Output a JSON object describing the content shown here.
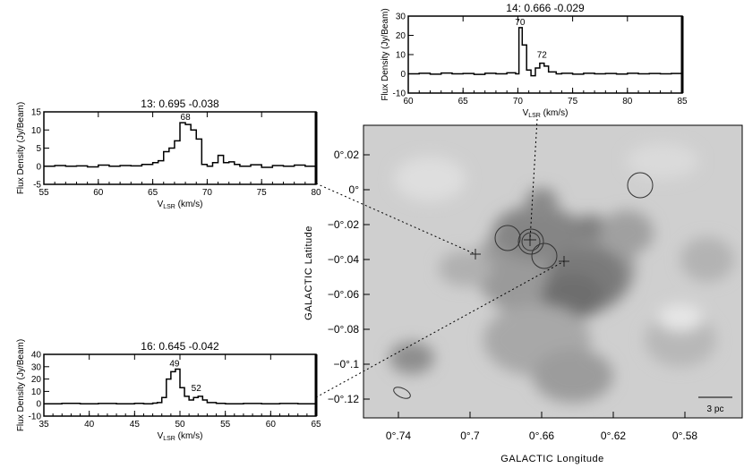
{
  "colors": {
    "line": "#000000",
    "map_bg": "#c9c9c9",
    "blob": "#6a6a6a"
  },
  "chart_data": [
    {
      "type": "line",
      "id": "p13",
      "title": "13:  0.695 -0.038",
      "xlabel_main": "V",
      "xlabel_sub": "LSR",
      "xlabel_unit": " (km/s)",
      "ylabel": "Flux Density (Jy/Beam)",
      "xlim": [
        55,
        80
      ],
      "ylim": [
        -5,
        15
      ],
      "xticks": [
        "55",
        "60",
        "65",
        "70",
        "75",
        "80"
      ],
      "yticks": [
        "-5",
        "0",
        "5",
        "10",
        "15"
      ],
      "annotations": [
        {
          "text": "68",
          "x": 68,
          "y": 12
        }
      ],
      "x": [
        55,
        56,
        57,
        58,
        59,
        60,
        61,
        62,
        63,
        64,
        65,
        65.5,
        66,
        66.5,
        67,
        67.5,
        68,
        68.5,
        69,
        69.5,
        70,
        70.5,
        71,
        71.5,
        72,
        72.5,
        73,
        74,
        75,
        76,
        77,
        78,
        79,
        80
      ],
      "y": [
        0,
        0.2,
        0,
        0.1,
        -0.2,
        0.3,
        0,
        0.2,
        0.1,
        0.5,
        1,
        1.5,
        4,
        5,
        7,
        12,
        11.5,
        10,
        7.5,
        0.5,
        0,
        1,
        3,
        1,
        1.2,
        0.5,
        0,
        0.4,
        -0.3,
        0.2,
        0,
        0.3,
        0,
        0
      ]
    },
    {
      "type": "line",
      "id": "p14",
      "title": "14:  0.666 -0.029",
      "xlabel_main": "V",
      "xlabel_sub": "LSR",
      "xlabel_unit": " (km/s)",
      "ylabel": "Flux Density (Jy/Beam)",
      "xlim": [
        60,
        85
      ],
      "ylim": [
        -10,
        30
      ],
      "xticks": [
        "60",
        "65",
        "70",
        "75",
        "80",
        "85"
      ],
      "yticks": [
        "-10",
        "0",
        "10",
        "20",
        "30"
      ],
      "annotations": [
        {
          "text": "70",
          "x": 70.2,
          "y": 24
        },
        {
          "text": "72",
          "x": 72.2,
          "y": 7
        }
      ],
      "x": [
        60,
        61,
        62,
        63,
        64,
        65,
        66,
        67,
        68,
        69,
        69.8,
        70.1,
        70.4,
        70.8,
        71.2,
        71.6,
        72,
        72.4,
        72.8,
        73.5,
        74,
        75,
        76,
        77,
        78,
        79,
        80,
        81,
        82,
        83,
        84,
        85
      ],
      "y": [
        0,
        0.3,
        -0.2,
        0.4,
        0,
        0.2,
        -0.3,
        0.3,
        0,
        0.5,
        0,
        24,
        15,
        2,
        -1,
        3,
        5.5,
        4,
        1,
        0,
        0.3,
        -0.2,
        0.3,
        0,
        0.2,
        -0.1,
        0.3,
        0,
        0.2,
        0,
        0.2,
        0
      ]
    },
    {
      "type": "line",
      "id": "p16",
      "title": "16:  0.645 -0.042",
      "xlabel_main": "V",
      "xlabel_sub": "LSR",
      "xlabel_unit": " (km/s)",
      "ylabel": "Flux Density (Jy/Beam)",
      "xlim": [
        35,
        65
      ],
      "ylim": [
        -10,
        40
      ],
      "xticks": [
        "35",
        "40",
        "45",
        "50",
        "55",
        "60",
        "65"
      ],
      "yticks": [
        "-10",
        "0",
        "10",
        "20",
        "30",
        "40"
      ],
      "annotations": [
        {
          "text": "49",
          "x": 49.4,
          "y": 28
        },
        {
          "text": "52",
          "x": 51.8,
          "y": 8
        }
      ],
      "x": [
        35,
        37,
        39,
        41,
        43,
        45,
        46,
        47,
        47.5,
        48,
        48.5,
        49,
        49.5,
        50,
        50.5,
        51,
        51.5,
        52,
        52.5,
        53,
        54,
        55,
        57,
        59,
        61,
        63,
        65
      ],
      "y": [
        0,
        0.3,
        0,
        0.2,
        0,
        0.3,
        0,
        0.5,
        1,
        5,
        20,
        26,
        28,
        13,
        6,
        3,
        5,
        6,
        3,
        1,
        0.3,
        0,
        0.2,
        0,
        0.2,
        0,
        0
      ]
    }
  ],
  "map": {
    "ylabel": "GALACTIC  Latitude",
    "xlabel": "GALACTIC  Longitude",
    "xticks": [
      "0°.74",
      "0°.7",
      "0°.66",
      "0°.62",
      "0°.58"
    ],
    "yticks": [
      "0°.02",
      "0°",
      "−0°.02",
      "−0°.04",
      "−0°.06",
      "−0°.08",
      "−0°.1",
      "−0°.12"
    ],
    "scalebar": "3 pc"
  }
}
